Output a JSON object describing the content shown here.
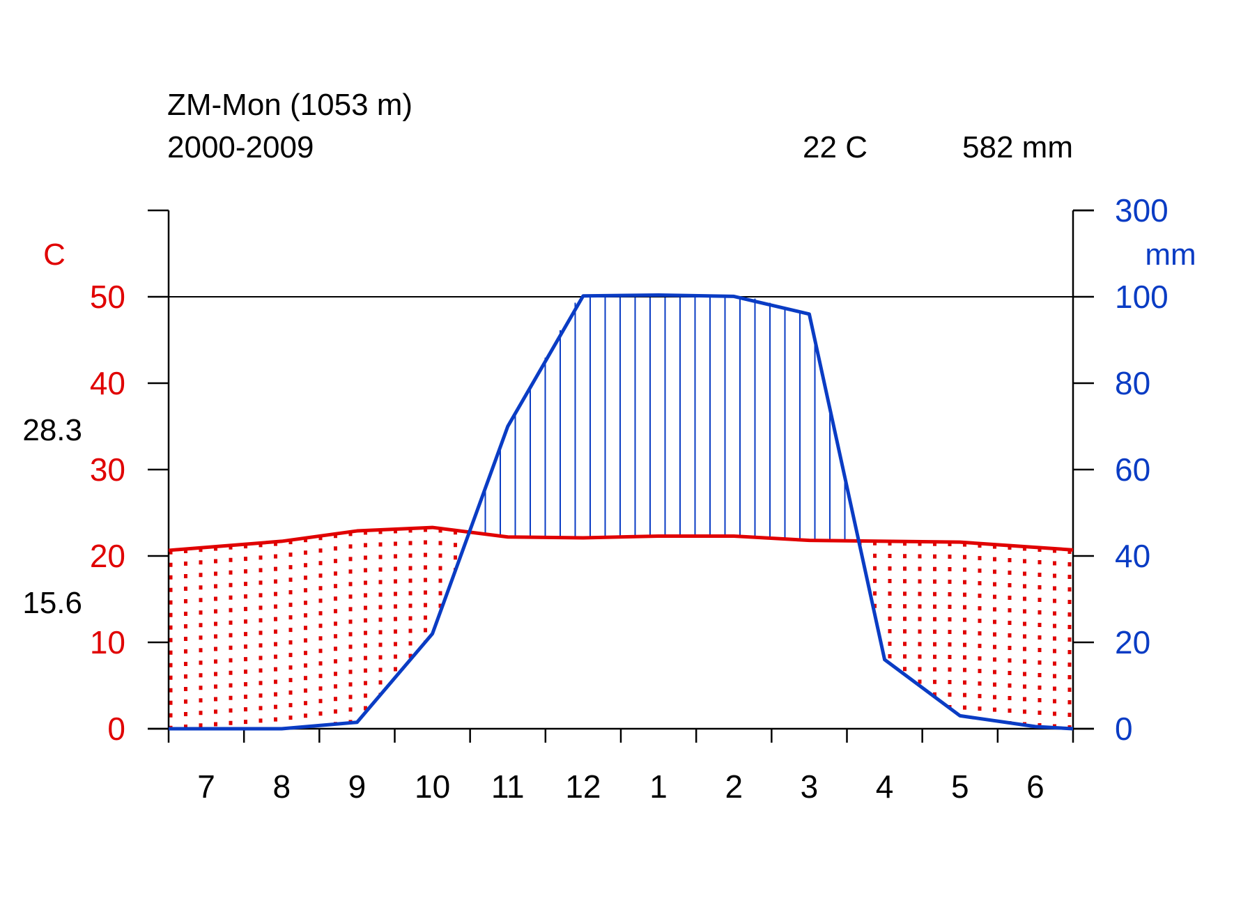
{
  "chart_data": {
    "type": "line",
    "title": "ZM-Mon (1053 m)",
    "subtitle": "2000-2009",
    "summary": {
      "mean_temperature": "22 C",
      "annual_precipitation": "582 mm"
    },
    "side_labels": {
      "upper": "28.3",
      "lower": "15.6"
    },
    "y_left": {
      "unit": "C",
      "ticks": [
        "0",
        "10",
        "20",
        "30",
        "40",
        "50"
      ],
      "range": [
        0,
        60
      ],
      "color": "#e00000"
    },
    "y_right": {
      "unit": "mm",
      "ticks": [
        "0",
        "20",
        "40",
        "60",
        "80",
        "100",
        "300"
      ],
      "range_below_break": [
        0,
        120
      ],
      "color": "#0a3cc4"
    },
    "x_ticks": [
      "7",
      "8",
      "9",
      "10",
      "11",
      "12",
      "1",
      "2",
      "3",
      "4",
      "5",
      "6"
    ],
    "series": [
      {
        "values": [
          21,
          21.7,
          22.9,
          23.3,
          22.2,
          22.1,
          22.3,
          22.3,
          21.8,
          21.7,
          21.6,
          21.0
        ],
        "color": "#e00000"
      },
      {
        "values": [
          0,
          0,
          1.5,
          22,
          70,
          102,
          104,
          101,
          96,
          16,
          3,
          0.5
        ],
        "color": "#0a3cc4"
      }
    ]
  }
}
